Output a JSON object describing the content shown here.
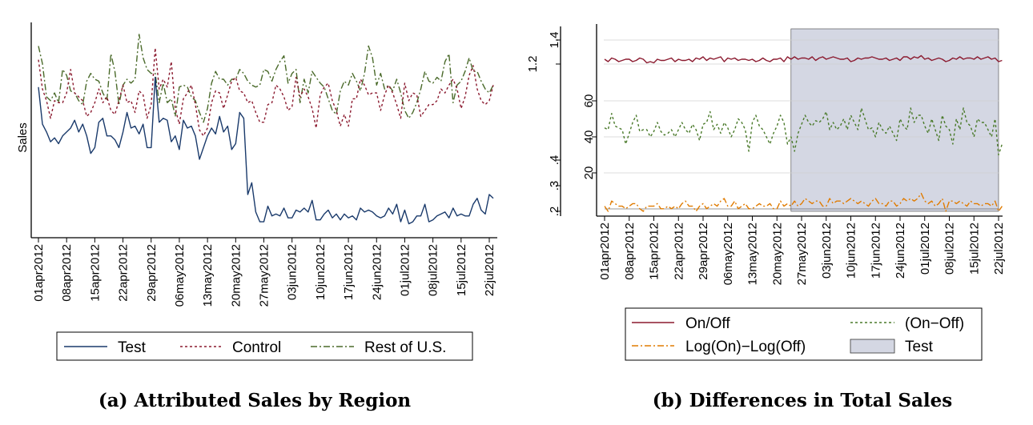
{
  "chart_data": [
    {
      "id": "a",
      "type": "line",
      "caption": "(a) Attributed Sales by Region",
      "ylabel": "Sales",
      "x_ticks": [
        "01apr2012",
        "08apr2012",
        "15apr2012",
        "22apr2012",
        "29apr2012",
        "06may2012",
        "13may2012",
        "20may2012",
        "27may2012",
        "03jun2012",
        "10jun2012",
        "17jun2012",
        "24jun2012",
        "01jul2012",
        "08jul2012",
        "15jul2012",
        "22jul2012"
      ],
      "x_range": [
        "2012-04-01",
        "2012-07-22"
      ],
      "y_range": [
        0,
        1
      ],
      "y_ticks_shown": false,
      "legend": [
        "Test",
        "Control",
        "Rest of U.S."
      ],
      "legend_position": "bottom",
      "series": [
        {
          "name": "Test",
          "color": "#1a3a6b",
          "style": "solid",
          "values": [
            0.71,
            0.52,
            0.48,
            0.43,
            0.45,
            0.42,
            0.46,
            0.48,
            0.5,
            0.54,
            0.48,
            0.52,
            0.46,
            0.37,
            0.4,
            0.53,
            0.55,
            0.46,
            0.46,
            0.44,
            0.4,
            0.48,
            0.58,
            0.5,
            0.51,
            0.47,
            0.52,
            0.4,
            0.4,
            0.76,
            0.53,
            0.55,
            0.54,
            0.43,
            0.46,
            0.39,
            0.54,
            0.5,
            0.51,
            0.46,
            0.34,
            0.4,
            0.46,
            0.5,
            0.47,
            0.56,
            0.48,
            0.51,
            0.39,
            0.42,
            0.58,
            0.55,
            0.16,
            0.22,
            0.07,
            0.02,
            0.02,
            0.1,
            0.05,
            0.06,
            0.05,
            0.09,
            0.04,
            0.04,
            0.08,
            0.07,
            0.09,
            0.07,
            0.13,
            0.03,
            0.03,
            0.06,
            0.08,
            0.04,
            0.06,
            0.03,
            0.06,
            0.04,
            0.05,
            0.03,
            0.09,
            0.07,
            0.08,
            0.07,
            0.05,
            0.04,
            0.05,
            0.09,
            0.06,
            0.11,
            0.02,
            0.08,
            0.01,
            0.02,
            0.05,
            0.05,
            0.11,
            0.02,
            0.03,
            0.05,
            0.06,
            0.07,
            0.04,
            0.09,
            0.05,
            0.06,
            0.05,
            0.05,
            0.11,
            0.14,
            0.08,
            0.06,
            0.16,
            0.14
          ]
        },
        {
          "name": "Control",
          "color": "#8b1a2f",
          "style": "dashed",
          "values": [
            0.85,
            0.7,
            0.64,
            0.55,
            0.64,
            0.63,
            0.63,
            0.68,
            0.8,
            0.68,
            0.66,
            0.64,
            0.56,
            0.58,
            0.63,
            0.7,
            0.63,
            0.66,
            0.59,
            0.57,
            0.64,
            0.72,
            0.63,
            0.64,
            0.58,
            0.69,
            0.67,
            0.55,
            0.62,
            0.91,
            0.7,
            0.75,
            0.71,
            0.84,
            0.6,
            0.52,
            0.65,
            0.68,
            0.72,
            0.62,
            0.49,
            0.46,
            0.5,
            0.63,
            0.69,
            0.68,
            0.6,
            0.67,
            0.74,
            0.76,
            0.69,
            0.68,
            0.63,
            0.64,
            0.58,
            0.53,
            0.53,
            0.62,
            0.63,
            0.72,
            0.7,
            0.66,
            0.59,
            0.61,
            0.76,
            0.66,
            0.7,
            0.66,
            0.6,
            0.5,
            0.67,
            0.71,
            0.73,
            0.64,
            0.59,
            0.51,
            0.57,
            0.51,
            0.65,
            0.65,
            0.75,
            0.72,
            0.67,
            0.68,
            0.68,
            0.59,
            0.67,
            0.72,
            0.68,
            0.62,
            0.55,
            0.73,
            0.64,
            0.68,
            0.67,
            0.56,
            0.59,
            0.62,
            0.62,
            0.64,
            0.7,
            0.68,
            0.72,
            0.75,
            0.7,
            0.6,
            0.66,
            0.77,
            0.82,
            0.7,
            0.64,
            0.62,
            0.64,
            0.72
          ]
        },
        {
          "name": "Rest of U.S.",
          "color": "#4a6a2a",
          "style": "dashdot",
          "values": [
            0.92,
            0.83,
            0.66,
            0.64,
            0.68,
            0.63,
            0.8,
            0.77,
            0.69,
            0.68,
            0.64,
            0.62,
            0.74,
            0.78,
            0.75,
            0.74,
            0.68,
            0.64,
            0.88,
            0.79,
            0.62,
            0.72,
            0.75,
            0.73,
            0.75,
            0.98,
            0.86,
            0.8,
            0.78,
            0.78,
            0.63,
            0.73,
            0.63,
            0.65,
            0.56,
            0.71,
            0.72,
            0.71,
            0.66,
            0.64,
            0.58,
            0.53,
            0.6,
            0.73,
            0.79,
            0.75,
            0.75,
            0.72,
            0.75,
            0.75,
            0.8,
            0.78,
            0.74,
            0.72,
            0.71,
            0.72,
            0.8,
            0.79,
            0.74,
            0.8,
            0.84,
            0.87,
            0.73,
            0.78,
            0.8,
            0.63,
            0.75,
            0.68,
            0.79,
            0.76,
            0.73,
            0.71,
            0.65,
            0.59,
            0.57,
            0.69,
            0.74,
            0.72,
            0.78,
            0.74,
            0.69,
            0.78,
            0.92,
            0.86,
            0.72,
            0.78,
            0.7,
            0.72,
            0.69,
            0.75,
            0.68,
            0.59,
            0.55,
            0.58,
            0.63,
            0.7,
            0.79,
            0.74,
            0.73,
            0.76,
            0.74,
            0.84,
            0.88,
            0.63,
            0.72,
            0.74,
            0.79,
            0.86,
            0.79,
            0.79,
            0.74,
            0.7,
            0.68,
            0.72
          ]
        }
      ]
    },
    {
      "id": "b",
      "type": "line",
      "caption": "(b) Differences in Total Sales",
      "x_ticks": [
        "01apr2012",
        "08apr2012",
        "15apr2012",
        "22apr2012",
        "29apr2012",
        "06may2012",
        "13may2012",
        "20may2012",
        "27may2012",
        "03jun2012",
        "10jun2012",
        "17jun2012",
        "24jun2012",
        "01jul2012",
        "08jul2012",
        "15jul2012",
        "22jul2012"
      ],
      "x_range": [
        "2012-04-01",
        "2012-07-22"
      ],
      "y_ticks_left_outer": [
        ".2",
        ".3",
        ".4",
        "1.2",
        "1.4"
      ],
      "y_ticks_inner": [
        "20",
        "40",
        "60"
      ],
      "inner_axis_range": [
        0,
        100
      ],
      "shaded_region": {
        "label": "Test",
        "start": "2012-05-24",
        "end": "2012-07-22",
        "color": "#d4d7e3"
      },
      "legend": [
        "On/Off",
        "(On−Off)",
        "Log(On)−Log(Off)",
        "Test"
      ],
      "legend_position": "bottom",
      "series": [
        {
          "name": "On/Off",
          "color": "#8b1a2f",
          "style": "solid",
          "values": [
            1.24,
            1.22,
            1.25,
            1.24,
            1.22,
            1.23,
            1.24,
            1.24,
            1.22,
            1.23,
            1.25,
            1.24,
            1.21,
            1.22,
            1.21,
            1.24,
            1.23,
            1.23,
            1.24,
            1.25,
            1.22,
            1.24,
            1.23,
            1.23,
            1.24,
            1.22,
            1.25,
            1.24,
            1.26,
            1.23,
            1.25,
            1.24,
            1.25,
            1.26,
            1.22,
            1.25,
            1.24,
            1.25,
            1.23,
            1.24,
            1.24,
            1.23,
            1.24,
            1.22,
            1.23,
            1.25,
            1.23,
            1.22,
            1.24,
            1.24,
            1.25,
            1.22,
            1.26,
            1.24,
            1.26,
            1.24,
            1.25,
            1.25,
            1.24,
            1.26,
            1.23,
            1.25,
            1.26,
            1.24,
            1.25,
            1.26,
            1.25,
            1.24,
            1.24,
            1.25,
            1.22,
            1.23,
            1.25,
            1.24,
            1.25,
            1.25,
            1.26,
            1.25,
            1.24,
            1.24,
            1.25,
            1.23,
            1.24,
            1.25,
            1.23,
            1.26,
            1.26,
            1.24,
            1.26,
            1.25,
            1.27,
            1.24,
            1.25,
            1.23,
            1.24,
            1.25,
            1.24,
            1.22,
            1.23,
            1.25,
            1.24,
            1.26,
            1.24,
            1.25,
            1.25,
            1.24,
            1.26,
            1.24,
            1.25,
            1.26,
            1.24,
            1.25,
            1.22,
            1.23
          ]
        },
        {
          "name": "(On−Off)",
          "color": "#4a7a2a",
          "style": "dashed",
          "values": [
            45,
            44,
            53,
            46,
            45,
            44,
            36,
            42,
            48,
            52,
            43,
            44,
            44,
            40,
            43,
            48,
            43,
            41,
            42,
            44,
            40,
            44,
            48,
            44,
            42,
            47,
            44,
            38,
            47,
            48,
            54,
            44,
            47,
            42,
            48,
            45,
            40,
            44,
            50,
            48,
            44,
            32,
            48,
            52,
            46,
            44,
            40,
            36,
            42,
            46,
            52,
            48,
            36,
            40,
            32,
            42,
            47,
            52,
            48,
            46,
            49,
            48,
            50,
            54,
            44,
            48,
            44,
            46,
            50,
            44,
            52,
            48,
            44,
            56,
            50,
            44,
            45,
            40,
            48,
            44,
            42,
            46,
            42,
            38,
            50,
            46,
            44,
            56,
            48,
            52,
            52,
            46,
            42,
            50,
            44,
            38,
            52,
            46,
            44,
            36,
            50,
            44,
            56,
            48,
            46,
            40,
            50,
            48,
            48,
            44,
            40,
            50,
            30,
            36
          ]
        },
        {
          "name": "Log(On)−Log(Off)",
          "color": "#e07b00",
          "style": "dashdot",
          "values": [
            0.22,
            0.2,
            0.24,
            0.23,
            0.22,
            0.22,
            0.21,
            0.22,
            0.23,
            0.23,
            0.21,
            0.2,
            0.22,
            0.22,
            0.22,
            0.23,
            0.21,
            0.21,
            0.22,
            0.21,
            0.22,
            0.21,
            0.23,
            0.24,
            0.22,
            0.22,
            0.2,
            0.22,
            0.23,
            0.21,
            0.22,
            0.23,
            0.22,
            0.24,
            0.25,
            0.22,
            0.22,
            0.24,
            0.21,
            0.22,
            0.23,
            0.21,
            0.21,
            0.22,
            0.23,
            0.22,
            0.22,
            0.23,
            0.21,
            0.21,
            0.24,
            0.22,
            0.23,
            0.22,
            0.24,
            0.22,
            0.23,
            0.25,
            0.24,
            0.23,
            0.24,
            0.24,
            0.22,
            0.22,
            0.25,
            0.23,
            0.24,
            0.24,
            0.23,
            0.24,
            0.25,
            0.24,
            0.23,
            0.24,
            0.23,
            0.22,
            0.24,
            0.25,
            0.23,
            0.23,
            0.22,
            0.24,
            0.24,
            0.22,
            0.23,
            0.25,
            0.24,
            0.25,
            0.24,
            0.25,
            0.27,
            0.24,
            0.23,
            0.24,
            0.22,
            0.23,
            0.25,
            0.2,
            0.24,
            0.24,
            0.23,
            0.24,
            0.23,
            0.22,
            0.24,
            0.23,
            0.23,
            0.22,
            0.23,
            0.23,
            0.22,
            0.24,
            0.2,
            0.22
          ]
        }
      ]
    }
  ]
}
